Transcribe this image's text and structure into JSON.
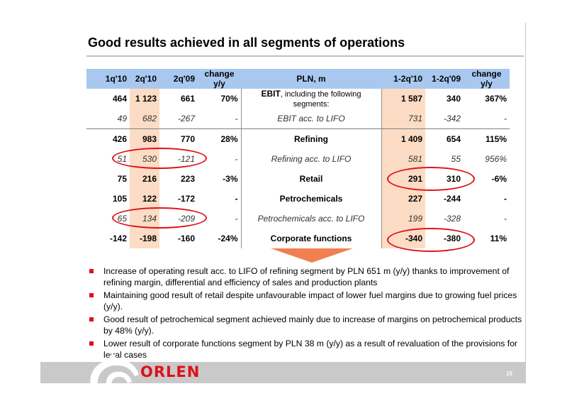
{
  "title": "Good results achieved in all segments of operations",
  "table": {
    "headers": [
      "1q'10",
      "2q'10",
      "2q'09",
      "change y/y",
      "PLN, m",
      "1-2q'10",
      "1-2q'09",
      "change y/y"
    ],
    "rows": [
      {
        "cells": [
          "464",
          "1 123",
          "661",
          "70%"
        ],
        "label": "EBIT",
        "label_suffix": ", including the following segments:",
        "right": [
          "1 587",
          "340",
          "367%"
        ]
      },
      {
        "cells": [
          "49",
          "682",
          "-267",
          "-"
        ],
        "label": "EBIT acc. to LIFO",
        "label_suffix": "",
        "right": [
          "731",
          "-342",
          "-"
        ]
      },
      {
        "cells": [
          "426",
          "983",
          "770",
          "28%"
        ],
        "label": "Refining",
        "label_suffix": "",
        "right": [
          "1 409",
          "654",
          "115%"
        ]
      },
      {
        "cells": [
          "51",
          "530",
          "-121",
          "-"
        ],
        "label": "Refining acc. to LIFO",
        "label_suffix": "",
        "right": [
          "581",
          "55",
          "956%"
        ]
      },
      {
        "cells": [
          "75",
          "216",
          "223",
          "-3%"
        ],
        "label": "Retail",
        "label_suffix": "",
        "right": [
          "291",
          "310",
          "-6%"
        ]
      },
      {
        "cells": [
          "105",
          "122",
          "-172",
          "-"
        ],
        "label": "Petrochemicals",
        "label_suffix": "",
        "right": [
          "227",
          "-244",
          "-"
        ]
      },
      {
        "cells": [
          "65",
          "134",
          "-209",
          "-"
        ],
        "label": "Petrochemicals acc. to LIFO",
        "label_suffix": "",
        "right": [
          "199",
          "-328",
          "-"
        ]
      },
      {
        "cells": [
          "-142",
          "-198",
          "-160",
          "-24%"
        ],
        "label": "Corporate functions",
        "label_suffix": "",
        "right": [
          "-340",
          "-380",
          "11%"
        ]
      }
    ]
  },
  "bullets": [
    "Increase of operating result acc. to LIFO of refining segment by PLN 651 m (y/y) thanks to improvement of refining margin, differential and efficiency of sales and  production plants",
    "Maintaining good result of retail  despite unfavourable impact of lower fuel margins due to growing fuel prices (y/y).",
    "Good result of petrochemical segment achieved mainly due to increase of margins on petrochemical products by 48% (y/y).",
    "Lower result of corporate functions segment by PLN 38 m (y/y) as a result of revaluation of the provisions for legal cases"
  ],
  "footer": {
    "logo_text": "ORLEN",
    "page_number": "10"
  },
  "colors": {
    "header_bg": "#a8c8f0",
    "shade": "#fcdcc4",
    "accent_red": "#e0101a",
    "arrow": "#f08050"
  }
}
